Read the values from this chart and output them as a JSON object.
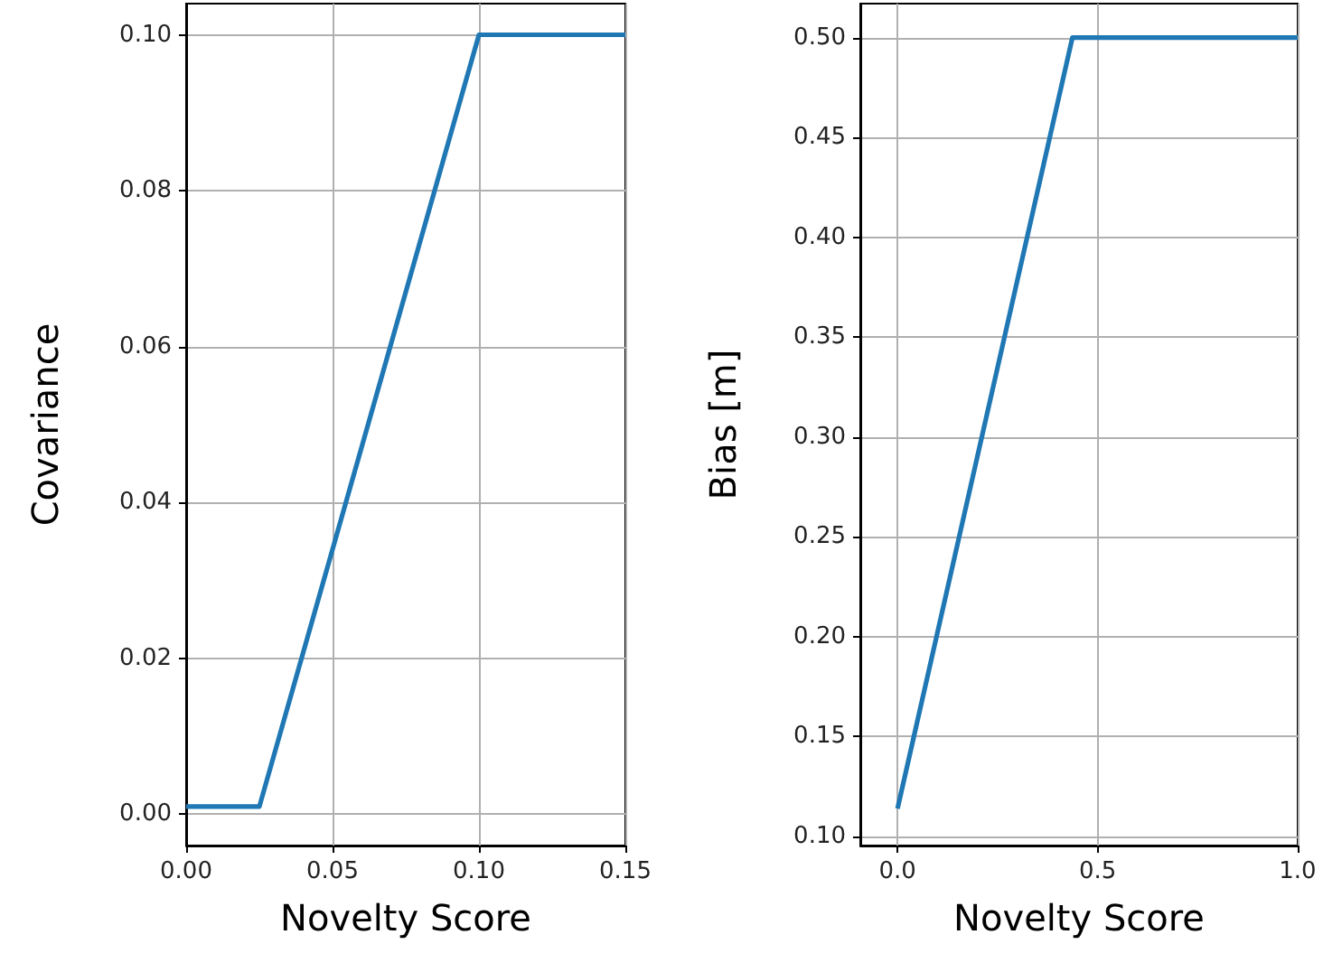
{
  "chart_data": [
    {
      "type": "line",
      "xlabel": "Novelty Score",
      "ylabel": "Covariance",
      "x": [
        0,
        0.025,
        0.1,
        0.15
      ],
      "series": [
        {
          "color": "#1f77b4",
          "values": [
            0.001,
            0.001,
            0.1,
            0.1
          ]
        }
      ],
      "xlim": [
        0,
        0.15
      ],
      "ylim": [
        -0.004,
        0.104
      ],
      "xticks": [
        {
          "value": 0,
          "label": "0.00"
        },
        0.05,
        {
          "value": 0.1,
          "label": "0.10"
        },
        0.15
      ],
      "yticks": [
        {
          "value": 0,
          "label": "0.00"
        },
        0.02,
        0.04,
        0.06,
        0.08,
        {
          "value": 0.1,
          "label": "0.10"
        }
      ],
      "grid": true
    },
    {
      "type": "line",
      "xlabel": "Novelty Score",
      "ylabel": "Bias [m]",
      "x": [
        0,
        0.437,
        1.0
      ],
      "series": [
        {
          "color": "#1f77b4",
          "values": [
            0.114,
            0.5,
            0.5
          ]
        }
      ],
      "xlim": [
        -0.093,
        1.0
      ],
      "ylim": [
        0.0955,
        0.517
      ],
      "xticks": [
        {
          "value": 0,
          "label": "0.0"
        },
        0.5,
        {
          "value": 1,
          "label": "1.0"
        }
      ],
      "yticks": [
        {
          "value": 0.1,
          "label": "0.10"
        },
        0.15,
        {
          "value": 0.2,
          "label": "0.20"
        },
        0.25,
        {
          "value": 0.3,
          "label": "0.30"
        },
        0.35,
        {
          "value": 0.4,
          "label": "0.40"
        },
        0.45,
        {
          "value": 0.5,
          "label": "0.50"
        }
      ],
      "grid": true
    }
  ]
}
